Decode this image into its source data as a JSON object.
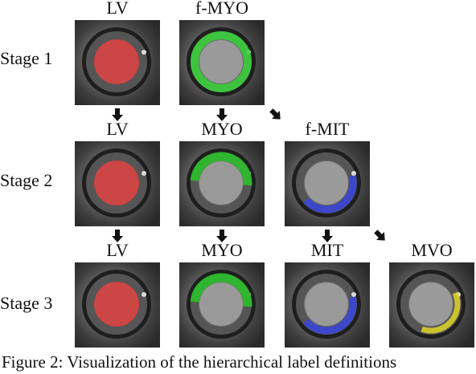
{
  "rows": [
    {
      "stage": "Stage 1",
      "panels": [
        "LV",
        "f-MYO"
      ]
    },
    {
      "stage": "Stage 2",
      "panels": [
        "LV",
        "MYO",
        "f-MIT"
      ]
    },
    {
      "stage": "Stage 3",
      "panels": [
        "LV",
        "MYO",
        "MIT",
        "MVO"
      ]
    }
  ],
  "caption": "Figure 2: Visualization of the hierarchical label definitions"
}
